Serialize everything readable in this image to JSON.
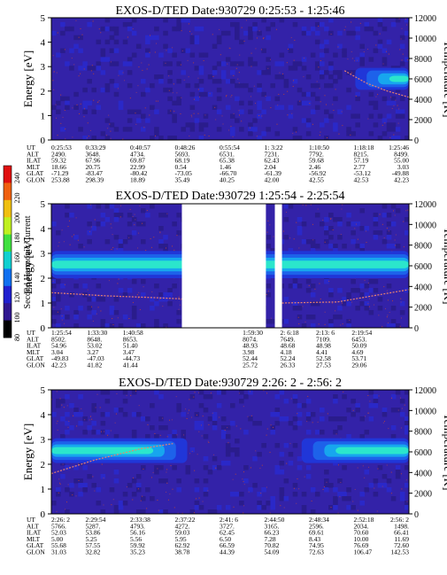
{
  "chart_data": [
    {
      "type": "heatmap",
      "title": "EXOS-D/TED   Date:930729   0:25:53 - 1:25:46",
      "ylabel": "Energy [eV]",
      "y2label": "Temperature [K]",
      "ylim": [
        0,
        5
      ],
      "y2lim": [
        0,
        12000
      ],
      "yticks": [
        "0",
        "1",
        "2",
        "3",
        "4",
        "5"
      ],
      "y2ticks": [
        "0",
        "2000",
        "4000",
        "6000",
        "8000",
        "10000",
        "12000"
      ],
      "colormap_name": "Second Harmonic Current",
      "color_stops": [
        "#2c1ea0",
        "#2020c8",
        "#2a6ae6",
        "#14c8e6",
        "#3cf0b4",
        "#a0f050",
        "#f0e014",
        "#f08c14",
        "#e61e14"
      ],
      "band_segments": [
        [
          0.85,
          1.0,
          0.55
        ]
      ],
      "band_center": 2.5,
      "band_halfwidth": 0.45,
      "temperature_trace": [
        [
          0.82,
          6800
        ],
        [
          0.88,
          5600
        ],
        [
          0.94,
          4800
        ],
        [
          1.0,
          4200
        ]
      ],
      "ephemeris": {
        "labels": [
          "UT",
          "ALT",
          "ILAT",
          "MLT",
          "GLAT",
          "GLON"
        ],
        "columns": [
          [
            "0:25:53",
            "2490.",
            "59.32",
            "18.66",
            "-71.29",
            "253.88"
          ],
          [
            "0:33:29",
            "3648.",
            "67.96",
            "20.75",
            "-83.47",
            "298.39"
          ],
          [
            "0:40:57",
            "4734.",
            "69.87",
            "22.99",
            "-80.42",
            "18.89"
          ],
          [
            "0:48:26",
            "5693.",
            "68.19",
            "0.54",
            "-73.05",
            "35.49"
          ],
          [
            "0:55:54",
            "6531.",
            "65.38",
            "1.46",
            "-66.70",
            "40.25"
          ],
          [
            "1: 3:22",
            "7231.",
            "62.43",
            "2.04",
            "-61.39",
            "42.00"
          ],
          [
            "1:10:50",
            "7792.",
            "59.68",
            "2.46",
            "-56.92",
            "42.55"
          ],
          [
            "1:18:18",
            "8215.",
            "57.19",
            "2.77",
            "-53.12",
            "42.53"
          ],
          [
            "1:25:46",
            "8499.",
            "55.00",
            "3.03",
            "-49.88",
            "42.23"
          ]
        ]
      }
    },
    {
      "type": "heatmap",
      "title": "EXOS-D/TED   Date:930729   1:25:54 - 2:25:54",
      "ylabel": "Energy [eV]",
      "y2label": "Temperature [K]",
      "ylim": [
        0,
        5
      ],
      "y2lim": [
        0,
        12000
      ],
      "yticks": [
        "0",
        "1",
        "2",
        "3",
        "4",
        "5"
      ],
      "y2ticks": [
        "0",
        "2000",
        "4000",
        "6000",
        "8000",
        "10000",
        "12000"
      ],
      "data_gaps": [
        [
          0.365,
          0.6
        ],
        [
          0.625,
          0.645
        ]
      ],
      "band_center": 2.55,
      "band_halfwidth": 0.55,
      "temperature_trace": [
        [
          0.0,
          3400
        ],
        [
          0.15,
          3100
        ],
        [
          0.3,
          2900
        ],
        [
          0.365,
          2800
        ],
        [
          0.645,
          2400
        ],
        [
          0.8,
          2500
        ],
        [
          1.0,
          3700
        ]
      ],
      "ephemeris": {
        "labels": [
          "UT",
          "ALT",
          "ILAT",
          "MLT",
          "GLAT",
          "GLON"
        ],
        "columns": [
          [
            "1:25:54",
            "8502.",
            "54.96",
            "3.04",
            "-49.83",
            "42.23"
          ],
          [
            "1:33:30",
            "8648.",
            "53.02",
            "3.27",
            "-47.03",
            "41.82"
          ],
          [
            "1:40:58",
            "8653.",
            "51.40",
            "3.47",
            "-44.73",
            "41.44"
          ],
          [
            "1:59:30",
            "8074.",
            "48.93",
            "3.98",
            "52.44",
            "25.72"
          ],
          [
            "2: 6:18",
            "7649.",
            "48.68",
            "4.18",
            "52.24",
            "26.33"
          ],
          [
            "2:13: 6",
            "7109.",
            "48.98",
            "4.41",
            "52.58",
            "27.53"
          ],
          [
            "2:19:54",
            "6453.",
            "50.09",
            "4.69",
            "53.71",
            "29.06"
          ]
        ]
      }
    },
    {
      "type": "heatmap",
      "title": "EXOS-D/TED   Date:930729   2:26: 2 - 2:56: 2",
      "ylabel": "Energy [eV]",
      "y2label": "Temperature [K]",
      "ylim": [
        0,
        5
      ],
      "y2lim": [
        0,
        12000
      ],
      "yticks": [
        "0",
        "1",
        "2",
        "3",
        "4",
        "5"
      ],
      "y2ticks": [
        "0",
        "2000",
        "4000",
        "6000",
        "8000",
        "10000",
        "12000"
      ],
      "band_segments": [
        [
          0.0,
          0.38,
          0.75
        ],
        [
          0.7,
          1.0,
          0.75
        ]
      ],
      "band_center": 2.55,
      "band_halfwidth": 0.5,
      "temperature_trace": [
        [
          0.0,
          3900
        ],
        [
          0.12,
          5200
        ],
        [
          0.25,
          6300
        ],
        [
          0.34,
          6800
        ]
      ],
      "ephemeris": {
        "labels": [
          "UT",
          "ALT",
          "ILAT",
          "MLT",
          "GLAT",
          "GLON"
        ],
        "columns": [
          [
            "2:26: 2",
            "5766.",
            "52.03",
            "5.00",
            "55.68",
            "31.03"
          ],
          [
            "2:29:54",
            "5287.",
            "53.86",
            "5.25",
            "57.55",
            "32.82"
          ],
          [
            "2:33:38",
            "4793.",
            "56.16",
            "5.56",
            "59.92",
            "35.23"
          ],
          [
            "2:37:22",
            "4272.",
            "59.03",
            "5.95",
            "62.92",
            "38.78"
          ],
          [
            "2:41: 6",
            "3727.",
            "62.45",
            "6.50",
            "66.59",
            "44.39"
          ],
          [
            "2:44:50",
            "3165.",
            "66.23",
            "7.28",
            "70.82",
            "54.09"
          ],
          [
            "2:48:34",
            "2596.",
            "69.61",
            "8.43",
            "74.95",
            "72.63"
          ],
          [
            "2:52:18",
            "2034.",
            "70.60",
            "10.00",
            "76.69",
            "106.47"
          ],
          [
            "2:56: 2",
            "1498.",
            "66.41",
            "11.69",
            "72.60",
            "142.53"
          ]
        ]
      }
    }
  ],
  "colorbar": {
    "label": "Second Harmonic Current",
    "ticks": [
      "240",
      "220",
      "200",
      "180",
      "160",
      "140",
      "120",
      "100",
      "80"
    ],
    "colors": [
      "#e01010",
      "#f06010",
      "#f0c010",
      "#c0f020",
      "#40e040",
      "#10d0d0",
      "#1070f0",
      "#2020d0",
      "#301890",
      "#000000"
    ]
  }
}
